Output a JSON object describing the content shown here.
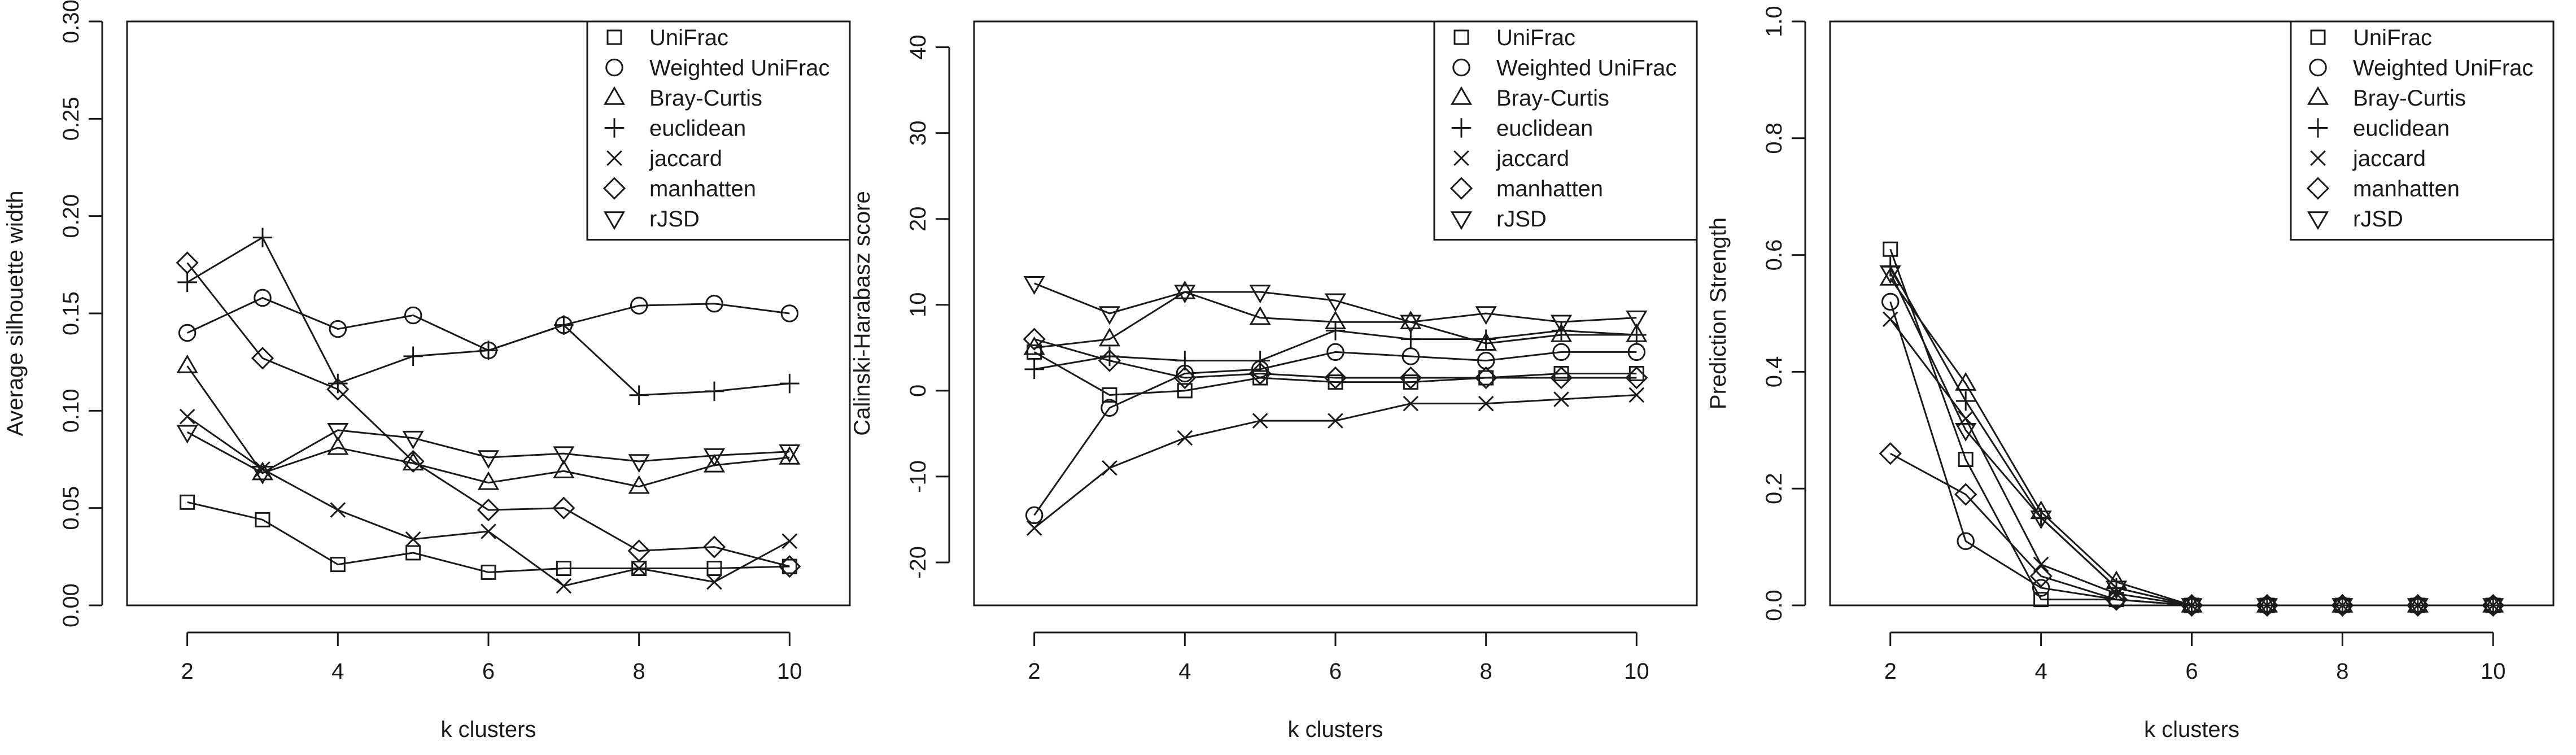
{
  "chart_data": [
    {
      "type": "line",
      "xlabel": "k clusters",
      "ylabel": "Average silhouette width",
      "x": [
        2,
        3,
        4,
        5,
        6,
        7,
        8,
        9,
        10
      ],
      "xlim": [
        1.2,
        10.8
      ],
      "ylim": [
        0,
        0.3
      ],
      "xticks": [
        "2",
        "4",
        "6",
        "8",
        "10"
      ],
      "yticks": [
        "0.00",
        "0.05",
        "0.10",
        "0.15",
        "0.20",
        "0.25",
        "0.30"
      ],
      "legend_position": "top-right",
      "grid": false,
      "series": [
        {
          "name": "UniFrac",
          "marker": "square",
          "values": [
            0.053,
            0.044,
            0.021,
            0.027,
            0.017,
            0.019,
            0.019,
            0.019,
            0.02
          ]
        },
        {
          "name": "Weighted UniFrac",
          "marker": "circle",
          "values": [
            0.14,
            0.158,
            0.142,
            0.149,
            0.131,
            0.144,
            0.154,
            0.155,
            0.15
          ]
        },
        {
          "name": "Bray-Curtis",
          "marker": "triangle-up",
          "values": [
            0.123,
            0.068,
            0.081,
            0.073,
            0.063,
            0.069,
            0.061,
            0.072,
            0.076
          ]
        },
        {
          "name": "euclidean",
          "marker": "plus",
          "values": [
            0.166,
            0.189,
            0.114,
            0.128,
            0.131,
            0.144,
            0.108,
            0.11,
            0.114
          ]
        },
        {
          "name": "jaccard",
          "marker": "cross",
          "values": [
            0.097,
            0.07,
            0.049,
            0.034,
            0.038,
            0.01,
            0.019,
            0.012,
            0.033
          ]
        },
        {
          "name": "manhatten",
          "marker": "diamond",
          "values": [
            0.176,
            0.127,
            0.111,
            0.074,
            0.049,
            0.05,
            0.028,
            0.03,
            0.02
          ]
        },
        {
          "name": "rJSD",
          "marker": "triangle-down",
          "values": [
            0.089,
            0.068,
            0.09,
            0.086,
            0.076,
            0.078,
            0.074,
            0.077,
            0.079
          ]
        }
      ]
    },
    {
      "type": "line",
      "xlabel": "k clusters",
      "ylabel": "Calinski-Harabasz score",
      "x": [
        2,
        3,
        4,
        5,
        6,
        7,
        8,
        9,
        10
      ],
      "xlim": [
        1.2,
        10.8
      ],
      "ylim": [
        -25,
        43
      ],
      "xticks": [
        "2",
        "4",
        "6",
        "8",
        "10"
      ],
      "yticks": [
        "-20",
        "-10",
        "0",
        "10",
        "20",
        "30",
        "40"
      ],
      "legend_position": "top-right",
      "grid": false,
      "series": [
        {
          "name": "UniFrac",
          "marker": "square",
          "values": [
            4.5,
            -0.5,
            0.0,
            1.5,
            1.0,
            1.0,
            1.5,
            2.0,
            2.0
          ]
        },
        {
          "name": "Weighted UniFrac",
          "marker": "circle",
          "values": [
            -14.5,
            -2.0,
            2.0,
            2.5,
            4.5,
            4.0,
            3.5,
            4.5,
            4.5
          ]
        },
        {
          "name": "Bray-Curtis",
          "marker": "triangle-up",
          "values": [
            5.0,
            6.0,
            11.5,
            8.5,
            8.0,
            8.0,
            5.5,
            6.5,
            6.5
          ]
        },
        {
          "name": "euclidean",
          "marker": "plus",
          "values": [
            2.5,
            4.0,
            3.5,
            3.5,
            7.0,
            6.0,
            6.0,
            7.0,
            6.5
          ]
        },
        {
          "name": "jaccard",
          "marker": "cross",
          "values": [
            -16.0,
            -9.0,
            -5.5,
            -3.5,
            -3.5,
            -1.5,
            -1.5,
            -1.0,
            -0.5
          ]
        },
        {
          "name": "manhatten",
          "marker": "diamond",
          "values": [
            6.0,
            3.5,
            1.5,
            2.0,
            1.5,
            1.5,
            1.5,
            1.5,
            1.5
          ]
        },
        {
          "name": "rJSD",
          "marker": "triangle-down",
          "values": [
            12.5,
            9.0,
            11.5,
            11.5,
            10.5,
            8.0,
            9.0,
            8.0,
            8.5
          ]
        }
      ]
    },
    {
      "type": "line",
      "xlabel": "k clusters",
      "ylabel": "Prediction Strength",
      "x": [
        2,
        3,
        4,
        5,
        6,
        7,
        8,
        9,
        10
      ],
      "xlim": [
        1.2,
        10.8
      ],
      "ylim": [
        0,
        1.0
      ],
      "xticks": [
        "2",
        "4",
        "6",
        "8",
        "10"
      ],
      "yticks": [
        "0.0",
        "0.2",
        "0.4",
        "0.6",
        "0.8",
        "1.0"
      ],
      "legend_position": "top-right",
      "grid": false,
      "series": [
        {
          "name": "UniFrac",
          "marker": "square",
          "values": [
            0.61,
            0.25,
            0.01,
            0.01,
            0.0,
            0.0,
            0.0,
            0.0,
            0.0
          ]
        },
        {
          "name": "Weighted UniFrac",
          "marker": "circle",
          "values": [
            0.52,
            0.11,
            0.03,
            0.01,
            0.0,
            0.0,
            0.0,
            0.0,
            0.0
          ]
        },
        {
          "name": "Bray-Curtis",
          "marker": "triangle-up",
          "values": [
            0.56,
            0.38,
            0.16,
            0.04,
            0.0,
            0.0,
            0.0,
            0.0,
            0.0
          ]
        },
        {
          "name": "euclidean",
          "marker": "plus",
          "values": [
            0.58,
            0.35,
            0.15,
            0.03,
            0.0,
            0.0,
            0.0,
            0.0,
            0.0
          ]
        },
        {
          "name": "jaccard",
          "marker": "cross",
          "values": [
            0.49,
            0.32,
            0.07,
            0.02,
            0.0,
            0.0,
            0.0,
            0.0,
            0.0
          ]
        },
        {
          "name": "manhatten",
          "marker": "diamond",
          "values": [
            0.26,
            0.19,
            0.05,
            0.01,
            0.0,
            0.0,
            0.0,
            0.0,
            0.0
          ]
        },
        {
          "name": "rJSD",
          "marker": "triangle-down",
          "values": [
            0.57,
            0.3,
            0.15,
            0.03,
            0.0,
            0.0,
            0.0,
            0.0,
            0.0
          ]
        }
      ]
    }
  ]
}
